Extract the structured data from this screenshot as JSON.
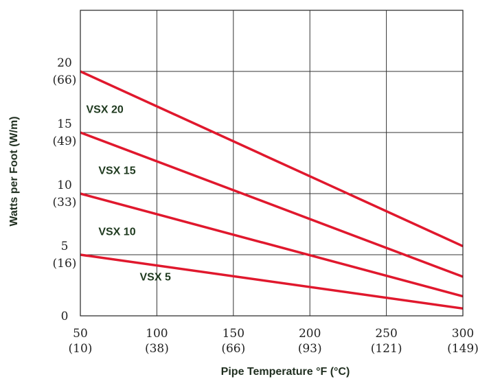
{
  "chart_data": {
    "type": "line",
    "title": "",
    "xlabel": "Pipe Temperature °F (°C)",
    "ylabel": "Watts per Foot (W/m)",
    "xlim": [
      50,
      300
    ],
    "ylim": [
      0,
      25
    ],
    "grid": true,
    "legend": "none",
    "x_ticks": [
      {
        "value": 50,
        "label": "50",
        "sublabel": "(10)"
      },
      {
        "value": 100,
        "label": "100",
        "sublabel": "(38)"
      },
      {
        "value": 150,
        "label": "150",
        "sublabel": "(66)"
      },
      {
        "value": 200,
        "label": "200",
        "sublabel": "(93)"
      },
      {
        "value": 250,
        "label": "250",
        "sublabel": "(121)"
      },
      {
        "value": 300,
        "label": "300",
        "sublabel": "(149)"
      }
    ],
    "y_ticks": [
      {
        "value": 0,
        "label": "0",
        "sublabel": ""
      },
      {
        "value": 5,
        "label": "5",
        "sublabel": "(16)"
      },
      {
        "value": 10,
        "label": "10",
        "sublabel": "(33)"
      },
      {
        "value": 15,
        "label": "15",
        "sublabel": "(49)"
      },
      {
        "value": 20,
        "label": "20",
        "sublabel": "(66)"
      }
    ],
    "series": [
      {
        "name": "VSX 20",
        "color": "#e0182d",
        "x": [
          50,
          300
        ],
        "y": [
          20,
          5.7
        ]
      },
      {
        "name": "VSX 15",
        "color": "#e0182d",
        "x": [
          50,
          300
        ],
        "y": [
          15,
          3.2
        ]
      },
      {
        "name": "VSX 10",
        "color": "#e0182d",
        "x": [
          50,
          300
        ],
        "y": [
          10,
          1.6
        ]
      },
      {
        "name": "VSX 5",
        "color": "#e0182d",
        "x": [
          50,
          300
        ],
        "y": [
          5,
          0.6
        ]
      }
    ],
    "annotations": [
      {
        "text": "VSX 20",
        "x": 66,
        "y": 16.6
      },
      {
        "text": "VSX 15",
        "x": 74,
        "y": 11.6
      },
      {
        "text": "VSX 10",
        "x": 74,
        "y": 6.6
      },
      {
        "text": "VSX 5",
        "x": 99,
        "y": 2.9
      }
    ]
  }
}
